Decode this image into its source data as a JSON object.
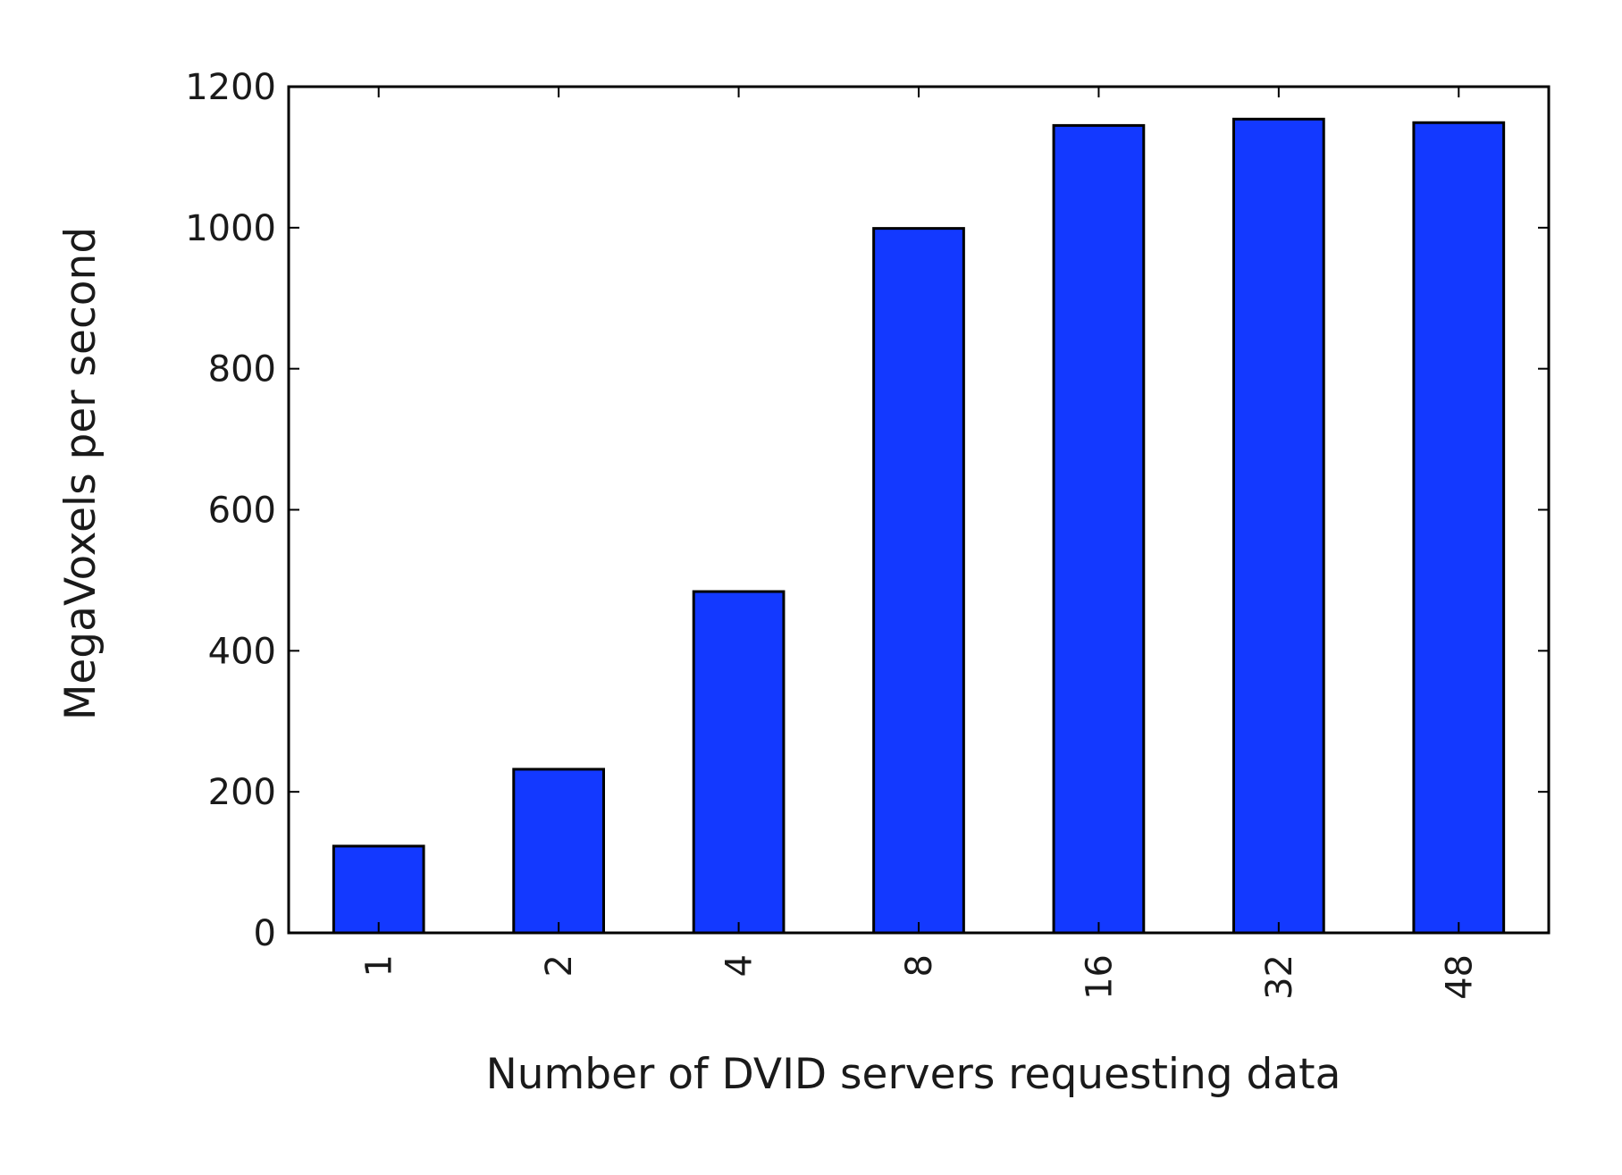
{
  "chart_data": {
    "type": "bar",
    "categories": [
      "1",
      "2",
      "4",
      "8",
      "16",
      "32",
      "48"
    ],
    "values": [
      123,
      232,
      484,
      999,
      1145,
      1154,
      1149
    ],
    "xlabel": "Number of DVID servers requesting data",
    "ylabel": "MegaVoxels per second",
    "ylim": [
      0,
      1200
    ],
    "yticks": [
      "0",
      "200",
      "400",
      "600",
      "800",
      "1000",
      "1200"
    ],
    "grid": false,
    "legend": "none",
    "colors": {
      "bar_fill": "#1339ff",
      "bar_edge": "#000000",
      "axes": "#000000",
      "background": "#ffffff"
    }
  }
}
